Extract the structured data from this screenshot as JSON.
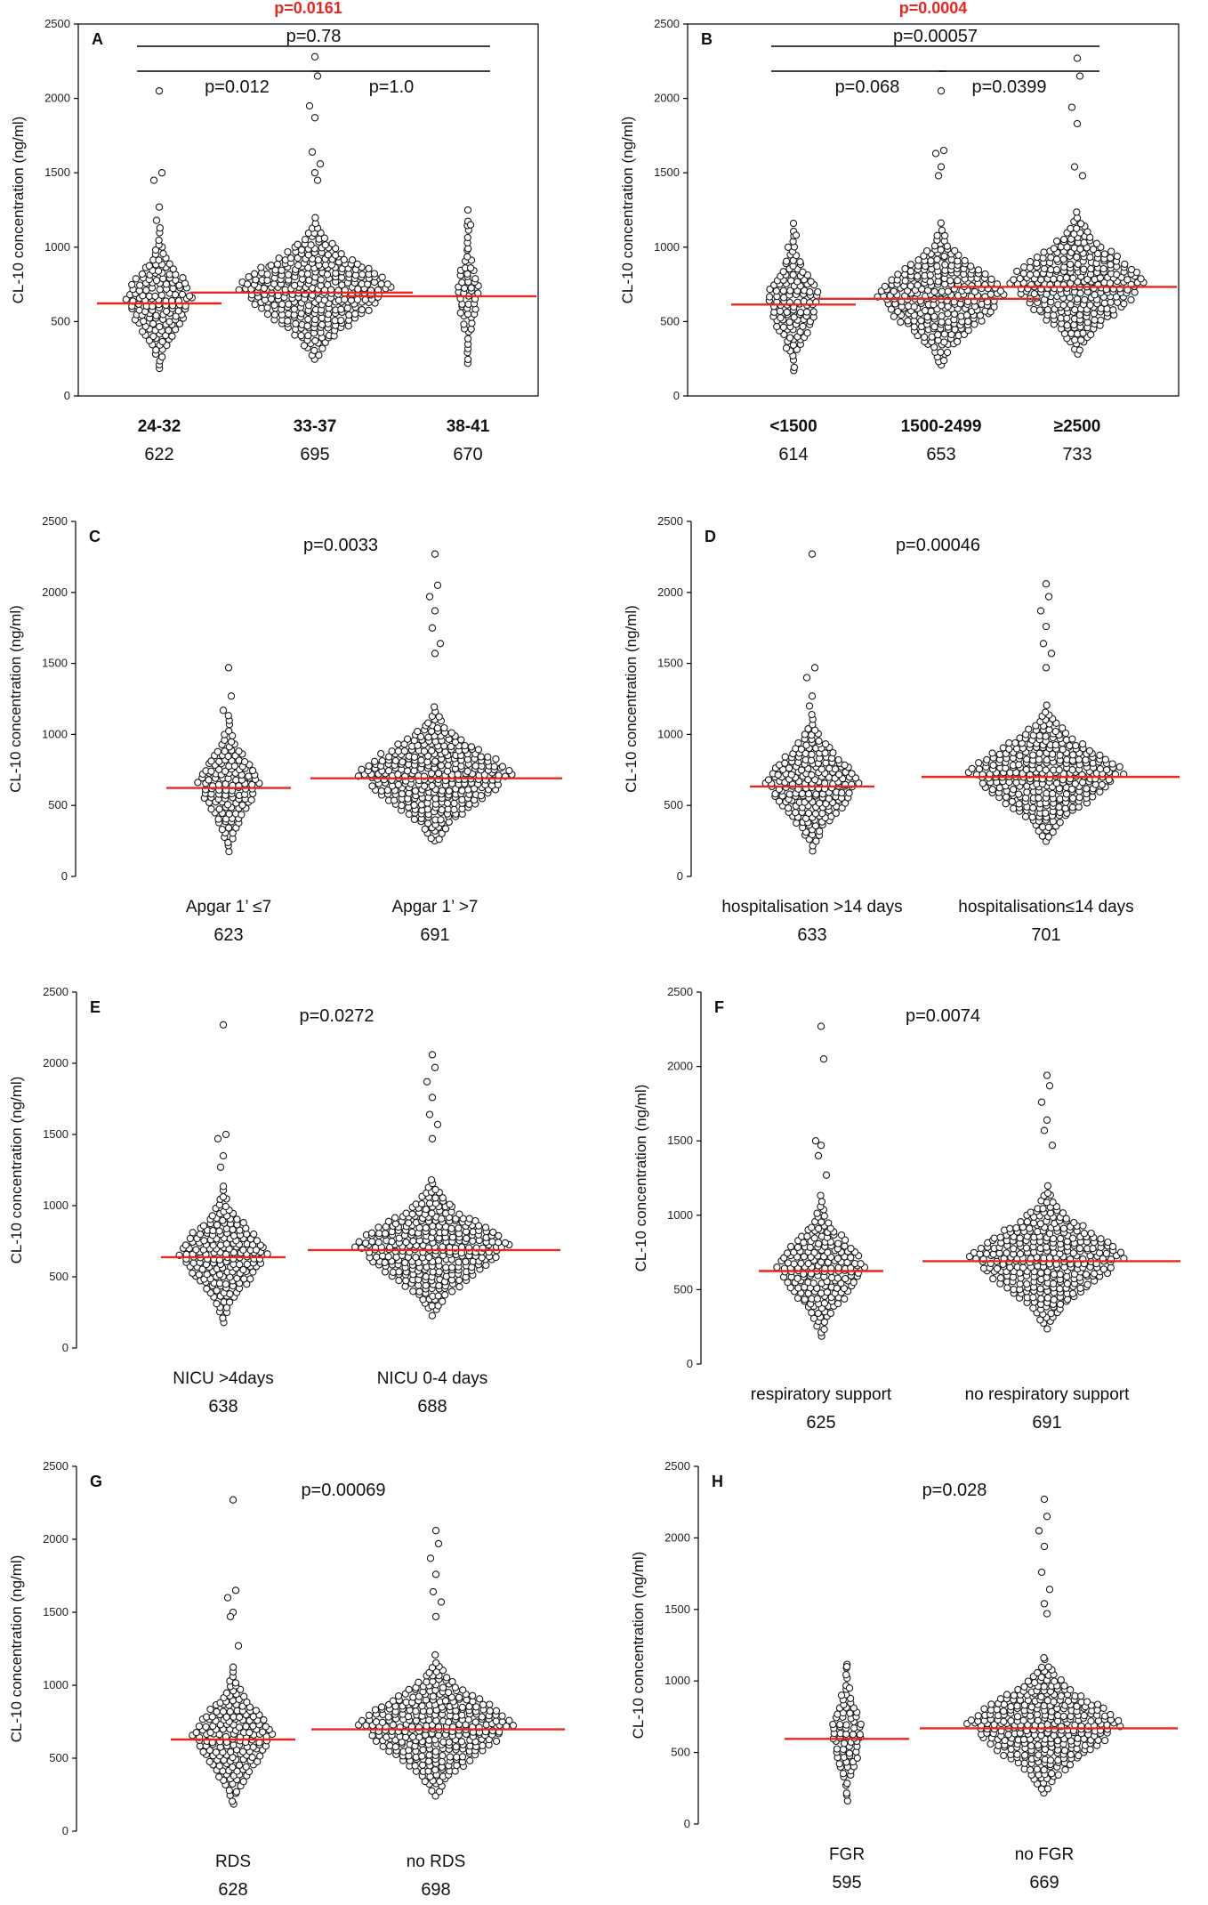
{
  "y_axis_label": "CL-10 concentration (ng/ml)",
  "chart_data": [
    {
      "type": "scatter",
      "panel": "A",
      "title": "p=0.0161",
      "title_color": "#e8281e",
      "framed": true,
      "ylabel": "CL-10 concentration (ng/ml)",
      "ylim": [
        0,
        2500
      ],
      "yticks": [
        0,
        500,
        1000,
        1500,
        2000,
        2500
      ],
      "categories": [
        "24-32",
        "33-37",
        "38-41"
      ],
      "category_bold": true,
      "medians": [
        "622",
        "695",
        "670"
      ],
      "median_values": [
        622,
        695,
        670
      ],
      "outliers": [
        [
          2050,
          1500,
          1450,
          1270,
          1180
        ],
        [
          2280,
          2150,
          1950,
          1870,
          1640,
          1560,
          1500,
          1450
        ],
        [
          1250,
          1150
        ]
      ],
      "spread": [
        1.0,
        2.4,
        0.35
      ],
      "comparisons": [
        {
          "label": "p=0.78",
          "from": 0,
          "to": 2,
          "level": 2
        },
        {
          "label": "p=0.012",
          "from": 0,
          "to": 1,
          "level": 1
        },
        {
          "label": "p=1.0",
          "from": 1,
          "to": 2,
          "level": 1
        }
      ]
    },
    {
      "type": "scatter",
      "panel": "B",
      "title": "p=0.0004",
      "title_color": "#e8281e",
      "framed": true,
      "ylabel": "CL-10 concentration (ng/ml)",
      "ylim": [
        0,
        2500
      ],
      "yticks": [
        0,
        500,
        1000,
        1500,
        2000,
        2500
      ],
      "categories": [
        "<1500",
        "1500-2499",
        "≥2500"
      ],
      "category_bold": true,
      "medians": [
        "614",
        "653",
        "733"
      ],
      "median_values": [
        614,
        653,
        733
      ],
      "outliers": [
        [
          1160,
          1080,
          1000
        ],
        [
          2050,
          1650,
          1630,
          1540,
          1480
        ],
        [
          2270,
          2150,
          1940,
          1830,
          1540,
          1480
        ]
      ],
      "spread": [
        0.8,
        1.9,
        2.0
      ],
      "comparisons": [
        {
          "label": "p=0.00057",
          "from": 0,
          "to": 2,
          "level": 2
        },
        {
          "label": "p=0.068",
          "from": 0,
          "to": 1,
          "level": 1
        },
        {
          "label": "p=0.0399",
          "from": 1,
          "to": 2,
          "level": 1
        }
      ]
    },
    {
      "type": "scatter",
      "panel": "C",
      "title": "",
      "framed": false,
      "ylabel": "CL-10 concentration (ng/ml)",
      "ylim": [
        0,
        2500
      ],
      "yticks": [
        0,
        500,
        1000,
        1500,
        2000,
        2500
      ],
      "categories": [
        "Apgar 1’ ≤7",
        "Apgar 1’ >7"
      ],
      "category_bold": false,
      "medians": [
        "623",
        "691"
      ],
      "median_values": [
        623,
        691
      ],
      "outliers": [
        [
          1470,
          1270,
          1170
        ],
        [
          2270,
          2050,
          1970,
          1870,
          1750,
          1640,
          1570
        ]
      ],
      "spread": [
        0.9,
        2.5
      ],
      "comparisons": [
        {
          "label": "p=0.0033",
          "from": 0,
          "to": 1,
          "level": 0
        }
      ]
    },
    {
      "type": "scatter",
      "panel": "D",
      "title": "",
      "framed": false,
      "ylabel": "CL-10 concentration (ng/ml)",
      "ylim": [
        0,
        2500
      ],
      "yticks": [
        0,
        500,
        1000,
        1500,
        2000,
        2500
      ],
      "categories": [
        "hospitalisation >14 days",
        "hospitalisation≤14 days"
      ],
      "category_bold": false,
      "medians": [
        "633",
        "701"
      ],
      "median_values": [
        633,
        701
      ],
      "outliers": [
        [
          2270,
          1470,
          1400,
          1270,
          1200
        ],
        [
          2060,
          1970,
          1870,
          1760,
          1640,
          1570,
          1470
        ]
      ],
      "spread": [
        1.4,
        2.4
      ],
      "comparisons": [
        {
          "label": "p=0.00046",
          "from": 0,
          "to": 1,
          "level": 0
        }
      ]
    },
    {
      "type": "scatter",
      "panel": "E",
      "title": "",
      "framed": false,
      "ylabel": "CL-10 concentration (ng/ml)",
      "ylim": [
        0,
        2500
      ],
      "yticks": [
        0,
        500,
        1000,
        1500,
        2000,
        2500
      ],
      "categories": [
        "NICU >4days",
        "NICU 0-4 days"
      ],
      "category_bold": false,
      "medians": [
        "638",
        "688"
      ],
      "median_values": [
        638,
        688
      ],
      "outliers": [
        [
          2270,
          1500,
          1470,
          1350,
          1270
        ],
        [
          2060,
          1970,
          1870,
          1760,
          1640,
          1570,
          1470
        ]
      ],
      "spread": [
        1.3,
        2.4
      ],
      "comparisons": [
        {
          "label": "p=0.0272",
          "from": 0,
          "to": 1,
          "level": 0
        }
      ]
    },
    {
      "type": "scatter",
      "panel": "F",
      "title": "",
      "framed": false,
      "ylabel": "CL-10 concentration (ng/ml)",
      "ylim": [
        0,
        2500
      ],
      "yticks": [
        0,
        500,
        1000,
        1500,
        2000,
        2500
      ],
      "categories": [
        "respiratory support",
        "no respiratory support"
      ],
      "category_bold": false,
      "medians": [
        "625",
        "691"
      ],
      "median_values": [
        625,
        691
      ],
      "outliers": [
        [
          2270,
          2050,
          1500,
          1470,
          1400,
          1270
        ],
        [
          1940,
          1870,
          1760,
          1640,
          1570,
          1470
        ]
      ],
      "spread": [
        1.3,
        2.4
      ],
      "comparisons": [
        {
          "label": "p=0.0074",
          "from": 0,
          "to": 1,
          "level": 0
        }
      ]
    },
    {
      "type": "scatter",
      "panel": "G",
      "title": "",
      "framed": false,
      "ylabel": "CL-10 concentration (ng/ml)",
      "ylim": [
        0,
        2500
      ],
      "yticks": [
        0,
        500,
        1000,
        1500,
        2000,
        2500
      ],
      "categories": [
        "RDS",
        "no RDS"
      ],
      "category_bold": false,
      "medians": [
        "628",
        "698"
      ],
      "median_values": [
        628,
        698
      ],
      "outliers": [
        [
          2270,
          1650,
          1600,
          1500,
          1470,
          1270
        ],
        [
          2060,
          1970,
          1870,
          1760,
          1640,
          1570,
          1470
        ]
      ],
      "spread": [
        1.2,
        2.5
      ],
      "comparisons": [
        {
          "label": "p=0.00069",
          "from": 0,
          "to": 1,
          "level": 0
        }
      ]
    },
    {
      "type": "scatter",
      "panel": "H",
      "title": "",
      "framed": false,
      "ylabel": "CL-10 concentration (ng/ml)",
      "ylim": [
        0,
        2500
      ],
      "yticks": [
        0,
        500,
        1000,
        1500,
        2000,
        2500
      ],
      "categories": [
        "FGR",
        "no FGR"
      ],
      "category_bold": false,
      "medians": [
        "595",
        "669"
      ],
      "median_values": [
        595,
        669
      ],
      "outliers": [
        [
          1100,
          950,
          900
        ],
        [
          2270,
          2150,
          2050,
          1940,
          1760,
          1640,
          1540,
          1470
        ]
      ],
      "spread": [
        0.5,
        2.6
      ],
      "comparisons": [
        {
          "label": "p=0.028",
          "from": 0,
          "to": 1,
          "level": 0
        }
      ]
    }
  ]
}
